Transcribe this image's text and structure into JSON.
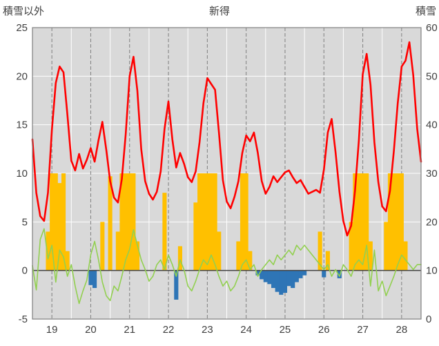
{
  "header": {
    "left_axis_title": "積雪以外",
    "station_title": "新得",
    "right_axis_title": "積雪"
  },
  "chart_data": {
    "type": "line",
    "title": "新得",
    "left_axis": {
      "label": "積雪以外",
      "min": -5,
      "max": 25,
      "ticks": [
        25,
        20,
        15,
        10,
        5,
        0,
        -5
      ]
    },
    "right_axis": {
      "label": "積雪",
      "min": 0,
      "max": 60,
      "ticks": [
        60,
        50,
        40,
        30,
        20,
        10,
        0
      ]
    },
    "x_axis": {
      "min": 18.5,
      "max": 28.5,
      "labels": [
        "19",
        "20",
        "21",
        "22",
        "23",
        "24",
        "25",
        "26",
        "27",
        "28"
      ],
      "label_positions": [
        19,
        20,
        21,
        22,
        23,
        24,
        25,
        26,
        27,
        28
      ]
    },
    "x_start": 18.5,
    "x_step": 0.1,
    "grid": {
      "plot_bg": "#d9d9d9",
      "major_line": "#ffffff",
      "dashed_line": "#7f7f7f",
      "zero_line": "#404040",
      "border": "#7f7f7f",
      "text_color": "#404040"
    },
    "series": [
      {
        "name": "orange-bars",
        "type": "bar",
        "color": "#ffc000",
        "values": [
          0,
          0,
          0,
          0,
          4,
          10,
          10,
          9,
          10,
          2,
          0,
          0,
          0,
          0,
          0,
          0,
          0,
          0,
          5,
          0,
          9.7,
          0,
          4,
          10,
          10,
          10,
          10,
          3,
          0,
          0,
          0,
          0,
          0,
          0,
          8,
          0,
          0,
          0,
          2.5,
          0,
          0,
          0,
          7,
          10,
          10,
          10,
          10,
          10,
          4,
          0,
          0,
          0,
          0,
          3,
          10,
          10,
          2,
          0,
          0,
          0,
          0,
          0,
          0,
          0,
          0,
          0,
          0,
          0,
          0,
          0,
          0,
          0,
          0,
          0,
          4,
          0,
          2,
          0,
          0,
          0,
          0,
          0,
          5,
          10,
          10,
          10,
          10,
          3,
          0,
          0,
          0,
          5,
          10,
          10,
          10,
          10,
          3,
          0,
          0,
          0,
          0
        ]
      },
      {
        "name": "blue-bars",
        "type": "bar",
        "color": "#2e75b6",
        "values": [
          0,
          0,
          0,
          0,
          0,
          0,
          0,
          0,
          0,
          0,
          0,
          0,
          0,
          0,
          0,
          -1.5,
          -1.8,
          0,
          0,
          0,
          0,
          0,
          0,
          0,
          0,
          0,
          0,
          0,
          0,
          0,
          0,
          0,
          0,
          0,
          0,
          0,
          0,
          -3.0,
          0,
          0,
          0,
          0,
          0,
          0,
          0,
          0,
          0,
          0,
          0,
          0,
          0,
          0,
          0,
          0,
          0,
          0,
          0,
          0,
          -0.5,
          -0.9,
          -1.2,
          -1.4,
          -1.8,
          -2.2,
          -2.5,
          -2.3,
          -1.6,
          -1.8,
          -1.2,
          -0.8,
          -0.5,
          0,
          0,
          0,
          0,
          -0.7,
          0,
          0,
          0,
          -0.8,
          0,
          0,
          0,
          0,
          0,
          0,
          0,
          0,
          0,
          0,
          0,
          0,
          0,
          0,
          0,
          0,
          0,
          0,
          0,
          0,
          0
        ]
      },
      {
        "name": "green-line",
        "type": "line",
        "color": "#92d050",
        "width": 1.6,
        "values": [
          0.5,
          -2.0,
          3.2,
          4.3,
          1.2,
          2.6,
          -1.2,
          2.1,
          1.4,
          -0.6,
          0.6,
          -1.6,
          -3.4,
          -2.1,
          -1.0,
          1.6,
          3.0,
          1.1,
          -1.2,
          -2.6,
          -3.1,
          -1.6,
          -2.1,
          -0.6,
          1.1,
          2.2,
          4.2,
          2.6,
          1.1,
          0.1,
          -1.1,
          -0.6,
          0.6,
          1.1,
          0.1,
          1.6,
          0.6,
          -0.6,
          1.1,
          0.1,
          -1.6,
          -2.1,
          -1.1,
          0.1,
          1.1,
          0.6,
          1.6,
          0.6,
          -0.6,
          -1.6,
          -1.1,
          -2.1,
          -1.6,
          -0.6,
          0.6,
          1.1,
          0.1,
          0.6,
          -0.6,
          0.1,
          0.6,
          1.1,
          0.6,
          1.6,
          1.1,
          1.6,
          2.1,
          1.6,
          2.6,
          2.1,
          2.6,
          2.1,
          1.6,
          1.1,
          0.6,
          0.1,
          0.6,
          -0.6,
          0.1,
          -0.6,
          0.6,
          0.1,
          -0.6,
          0.6,
          1.1,
          0.6,
          2.6,
          -1.6,
          2.1,
          -2.1,
          -1.1,
          -2.6,
          -1.6,
          -0.6,
          0.6,
          1.6,
          1.1,
          0.6,
          0.1,
          0.6,
          0.6
        ]
      },
      {
        "name": "red-line",
        "type": "line",
        "color": "#ff0000",
        "width": 2.6,
        "values": [
          13.5,
          8.0,
          5.6,
          5.1,
          8.0,
          14.5,
          19.3,
          21.0,
          20.4,
          16.0,
          11.3,
          10.3,
          12.0,
          10.5,
          11.4,
          12.6,
          11.2,
          13.4,
          15.3,
          12.4,
          9.2,
          7.5,
          7.0,
          9.4,
          14.0,
          20.0,
          22.0,
          18.5,
          12.5,
          9.2,
          7.9,
          7.3,
          8.1,
          10.2,
          14.6,
          17.4,
          13.5,
          10.6,
          12.1,
          11.0,
          9.6,
          9.1,
          10.2,
          13.2,
          17.2,
          19.8,
          19.2,
          18.6,
          14.2,
          9.3,
          7.1,
          6.4,
          7.6,
          9.2,
          12.1,
          13.9,
          13.3,
          14.2,
          12.1,
          9.2,
          7.9,
          8.6,
          9.7,
          9.1,
          9.6,
          10.1,
          10.3,
          9.6,
          9.0,
          9.3,
          8.6,
          7.9,
          8.1,
          8.3,
          8.0,
          10.4,
          14.2,
          15.6,
          12.2,
          8.1,
          5.1,
          3.6,
          4.6,
          8.2,
          13.4,
          20.2,
          22.3,
          19.1,
          13.2,
          9.1,
          6.6,
          6.1,
          8.2,
          12.3,
          17.2,
          21.0,
          21.6,
          23.5,
          20.1,
          14.6,
          11.2
        ]
      }
    ]
  }
}
